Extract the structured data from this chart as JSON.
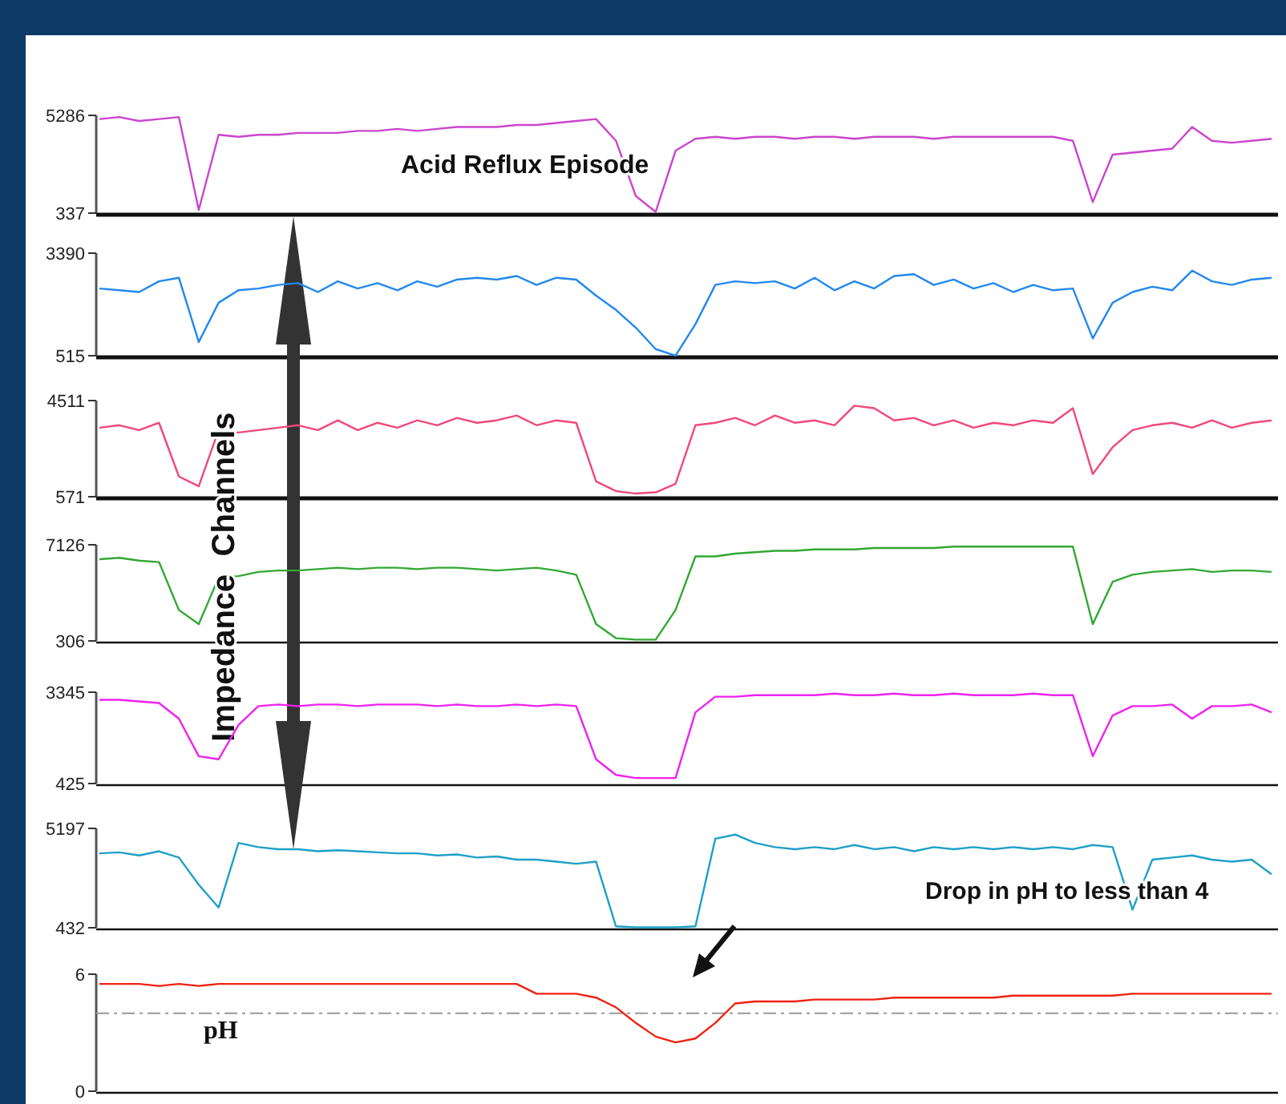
{
  "chart_data": [
    {
      "type": "line",
      "categories": [
        null,
        null,
        null,
        null,
        null,
        null,
        null,
        null,
        null,
        null,
        null,
        null,
        null,
        null,
        null,
        null,
        null,
        null,
        null,
        null,
        null,
        null,
        null,
        null,
        null,
        null,
        null,
        null,
        null,
        null,
        null,
        null,
        null,
        null,
        null,
        null,
        null,
        null,
        null,
        null,
        null,
        null,
        null,
        null,
        null,
        null,
        null,
        null,
        null,
        null,
        null,
        null,
        null,
        null,
        null,
        null,
        null,
        null,
        null,
        null
      ],
      "tick_labels": "y",
      "ylim": [
        337,
        5286
      ],
      "yticks": [
        337,
        5286
      ],
      "annotations": [
        "Acid Reflux Episode"
      ],
      "series": [
        {
          "color": "#cc44cc",
          "values": [
            5100,
            5200,
            5000,
            5100,
            5200,
            500,
            4300,
            4200,
            4300,
            4300,
            4400,
            4400,
            4400,
            4500,
            4500,
            4600,
            4500,
            4600,
            4700,
            4700,
            4700,
            4800,
            4800,
            4900,
            5000,
            5100,
            4000,
            1200,
            400,
            3500,
            4100,
            4200,
            4100,
            4200,
            4200,
            4100,
            4200,
            4200,
            4100,
            4200,
            4200,
            4200,
            4100,
            4200,
            4200,
            4200,
            4200,
            4200,
            4200,
            4000,
            900,
            3300,
            3400,
            3500,
            3600,
            4700,
            4000,
            3900,
            4000,
            4100
          ]
        }
      ]
    },
    {
      "type": "line",
      "categories": [
        null,
        null,
        null,
        null,
        null,
        null,
        null,
        null,
        null,
        null,
        null,
        null,
        null,
        null,
        null,
        null,
        null,
        null,
        null,
        null,
        null,
        null,
        null,
        null,
        null,
        null,
        null,
        null,
        null,
        null,
        null,
        null,
        null,
        null,
        null,
        null,
        null,
        null,
        null,
        null,
        null,
        null,
        null,
        null,
        null,
        null,
        null,
        null,
        null,
        null,
        null,
        null,
        null,
        null,
        null,
        null,
        null,
        null,
        null,
        null
      ],
      "tick_labels": "y",
      "ylim": [
        515,
        3390
      ],
      "yticks": [
        515,
        3390
      ],
      "series": [
        {
          "color": "#2288ee",
          "values": [
            2400,
            2350,
            2300,
            2600,
            2700,
            900,
            2000,
            2350,
            2400,
            2500,
            2550,
            2300,
            2600,
            2400,
            2550,
            2350,
            2600,
            2450,
            2650,
            2700,
            2650,
            2750,
            2500,
            2700,
            2650,
            2200,
            1800,
            1300,
            700,
            520,
            1400,
            2500,
            2600,
            2550,
            2600,
            2400,
            2700,
            2350,
            2600,
            2400,
            2750,
            2800,
            2500,
            2650,
            2400,
            2550,
            2300,
            2500,
            2350,
            2400,
            1000,
            2000,
            2300,
            2450,
            2350,
            2900,
            2600,
            2500,
            2650,
            2700
          ]
        }
      ]
    },
    {
      "type": "line",
      "categories": [
        null,
        null,
        null,
        null,
        null,
        null,
        null,
        null,
        null,
        null,
        null,
        null,
        null,
        null,
        null,
        null,
        null,
        null,
        null,
        null,
        null,
        null,
        null,
        null,
        null,
        null,
        null,
        null,
        null,
        null,
        null,
        null,
        null,
        null,
        null,
        null,
        null,
        null,
        null,
        null,
        null,
        null,
        null,
        null,
        null,
        null,
        null,
        null,
        null,
        null,
        null,
        null,
        null,
        null,
        null,
        null,
        null,
        null,
        null,
        null
      ],
      "tick_labels": "y",
      "ylim": [
        571,
        4511
      ],
      "yticks": [
        571,
        4511
      ],
      "series": [
        {
          "color": "#f0487a",
          "values": [
            3400,
            3500,
            3300,
            3600,
            1400,
            1000,
            3300,
            3200,
            3300,
            3400,
            3500,
            3300,
            3700,
            3300,
            3600,
            3400,
            3700,
            3500,
            3800,
            3600,
            3700,
            3900,
            3500,
            3700,
            3600,
            1200,
            800,
            700,
            750,
            1100,
            3500,
            3600,
            3800,
            3500,
            3900,
            3600,
            3700,
            3500,
            4300,
            4200,
            3700,
            3800,
            3500,
            3700,
            3400,
            3600,
            3500,
            3700,
            3600,
            4200,
            1500,
            2600,
            3300,
            3500,
            3600,
            3400,
            3700,
            3400,
            3600,
            3700
          ]
        }
      ]
    },
    {
      "type": "line",
      "categories": [
        null,
        null,
        null,
        null,
        null,
        null,
        null,
        null,
        null,
        null,
        null,
        null,
        null,
        null,
        null,
        null,
        null,
        null,
        null,
        null,
        null,
        null,
        null,
        null,
        null,
        null,
        null,
        null,
        null,
        null,
        null,
        null,
        null,
        null,
        null,
        null,
        null,
        null,
        null,
        null,
        null,
        null,
        null,
        null,
        null,
        null,
        null,
        null,
        null,
        null,
        null,
        null,
        null,
        null,
        null,
        null,
        null,
        null,
        null,
        null
      ],
      "tick_labels": "y",
      "ylim": [
        306,
        7126
      ],
      "yticks": [
        306,
        7126
      ],
      "annotations": [
        "Impedance  Channels"
      ],
      "series": [
        {
          "color": "#33a833",
          "values": [
            6100,
            6200,
            6000,
            5900,
            2500,
            1500,
            4800,
            4900,
            5200,
            5300,
            5300,
            5400,
            5500,
            5400,
            5500,
            5500,
            5400,
            5500,
            5500,
            5400,
            5300,
            5400,
            5500,
            5300,
            5000,
            1500,
            500,
            400,
            400,
            2500,
            6300,
            6300,
            6500,
            6600,
            6700,
            6700,
            6800,
            6800,
            6800,
            6900,
            6900,
            6900,
            6900,
            7000,
            7000,
            7000,
            7000,
            7000,
            7000,
            7000,
            1500,
            4500,
            5000,
            5200,
            5300,
            5400,
            5200,
            5300,
            5300,
            5200
          ]
        }
      ]
    },
    {
      "type": "line",
      "categories": [
        null,
        null,
        null,
        null,
        null,
        null,
        null,
        null,
        null,
        null,
        null,
        null,
        null,
        null,
        null,
        null,
        null,
        null,
        null,
        null,
        null,
        null,
        null,
        null,
        null,
        null,
        null,
        null,
        null,
        null,
        null,
        null,
        null,
        null,
        null,
        null,
        null,
        null,
        null,
        null,
        null,
        null,
        null,
        null,
        null,
        null,
        null,
        null,
        null,
        null,
        null,
        null,
        null,
        null,
        null,
        null,
        null,
        null,
        null,
        null
      ],
      "tick_labels": "y",
      "ylim": [
        425,
        3345
      ],
      "yticks": [
        425,
        3345
      ],
      "series": [
        {
          "color": "#ee22ee",
          "values": [
            3100,
            3100,
            3050,
            3000,
            2500,
            1300,
            1200,
            2300,
            2900,
            2950,
            2900,
            2950,
            2950,
            2900,
            2950,
            2950,
            2950,
            2900,
            2950,
            2900,
            2900,
            2950,
            2900,
            2950,
            2900,
            1200,
            700,
            600,
            600,
            600,
            2700,
            3200,
            3200,
            3250,
            3250,
            3250,
            3250,
            3300,
            3250,
            3250,
            3300,
            3250,
            3250,
            3300,
            3250,
            3250,
            3250,
            3300,
            3250,
            3250,
            1300,
            2600,
            2900,
            2900,
            2950,
            2500,
            2900,
            2900,
            2950,
            2700
          ]
        }
      ]
    },
    {
      "type": "line",
      "categories": [
        null,
        null,
        null,
        null,
        null,
        null,
        null,
        null,
        null,
        null,
        null,
        null,
        null,
        null,
        null,
        null,
        null,
        null,
        null,
        null,
        null,
        null,
        null,
        null,
        null,
        null,
        null,
        null,
        null,
        null,
        null,
        null,
        null,
        null,
        null,
        null,
        null,
        null,
        null,
        null,
        null,
        null,
        null,
        null,
        null,
        null,
        null,
        null,
        null,
        null,
        null,
        null,
        null,
        null,
        null,
        null,
        null,
        null,
        null,
        null
      ],
      "tick_labels": "y",
      "ylim": [
        432,
        5197
      ],
      "yticks": [
        432,
        5197
      ],
      "series": [
        {
          "color": "#1ea0c8",
          "values": [
            4000,
            4050,
            3900,
            4100,
            3800,
            2500,
            1400,
            4500,
            4300,
            4200,
            4200,
            4100,
            4150,
            4100,
            4050,
            4000,
            4000,
            3900,
            3950,
            3800,
            3850,
            3700,
            3700,
            3600,
            3500,
            3600,
            500,
            450,
            450,
            450,
            500,
            4700,
            4900,
            4500,
            4300,
            4200,
            4300,
            4200,
            4400,
            4200,
            4300,
            4100,
            4300,
            4200,
            4300,
            4200,
            4300,
            4200,
            4300,
            4200,
            4400,
            4300,
            1300,
            3700,
            3800,
            3900,
            3700,
            3600,
            3700,
            3000
          ]
        }
      ]
    },
    {
      "type": "line",
      "categories": [
        null,
        null,
        null,
        null,
        null,
        null,
        null,
        null,
        null,
        null,
        null,
        null,
        null,
        null,
        null,
        null,
        null,
        null,
        null,
        null,
        null,
        null,
        null,
        null,
        null,
        null,
        null,
        null,
        null,
        null,
        null,
        null,
        null,
        null,
        null,
        null,
        null,
        null,
        null,
        null,
        null,
        null,
        null,
        null,
        null,
        null,
        null,
        null,
        null,
        null,
        null,
        null,
        null,
        null,
        null,
        null,
        null,
        null,
        null,
        null
      ],
      "tick_labels": "y",
      "ylim": [
        0,
        6
      ],
      "yticks": [
        0,
        6
      ],
      "annotations": [
        "Drop in pH to less than 4",
        "pH"
      ],
      "ref_lines": [
        {
          "axis": "y",
          "value": 4,
          "color": "#999999",
          "line_style": "dashed"
        }
      ],
      "series": [
        {
          "color": "#ee2211",
          "values": [
            5.5,
            5.5,
            5.5,
            5.4,
            5.5,
            5.4,
            5.5,
            5.5,
            5.5,
            5.5,
            5.5,
            5.5,
            5.5,
            5.5,
            5.5,
            5.5,
            5.5,
            5.5,
            5.5,
            5.5,
            5.5,
            5.5,
            5.0,
            5.0,
            5.0,
            4.8,
            4.3,
            3.5,
            2.8,
            2.5,
            2.7,
            3.5,
            4.5,
            4.6,
            4.6,
            4.6,
            4.7,
            4.7,
            4.7,
            4.7,
            4.8,
            4.8,
            4.8,
            4.8,
            4.8,
            4.8,
            4.9,
            4.9,
            4.9,
            4.9,
            4.9,
            4.9,
            5.0,
            5.0,
            5.0,
            5.0,
            5.0,
            5.0,
            5.0,
            5.0
          ]
        }
      ]
    }
  ]
}
